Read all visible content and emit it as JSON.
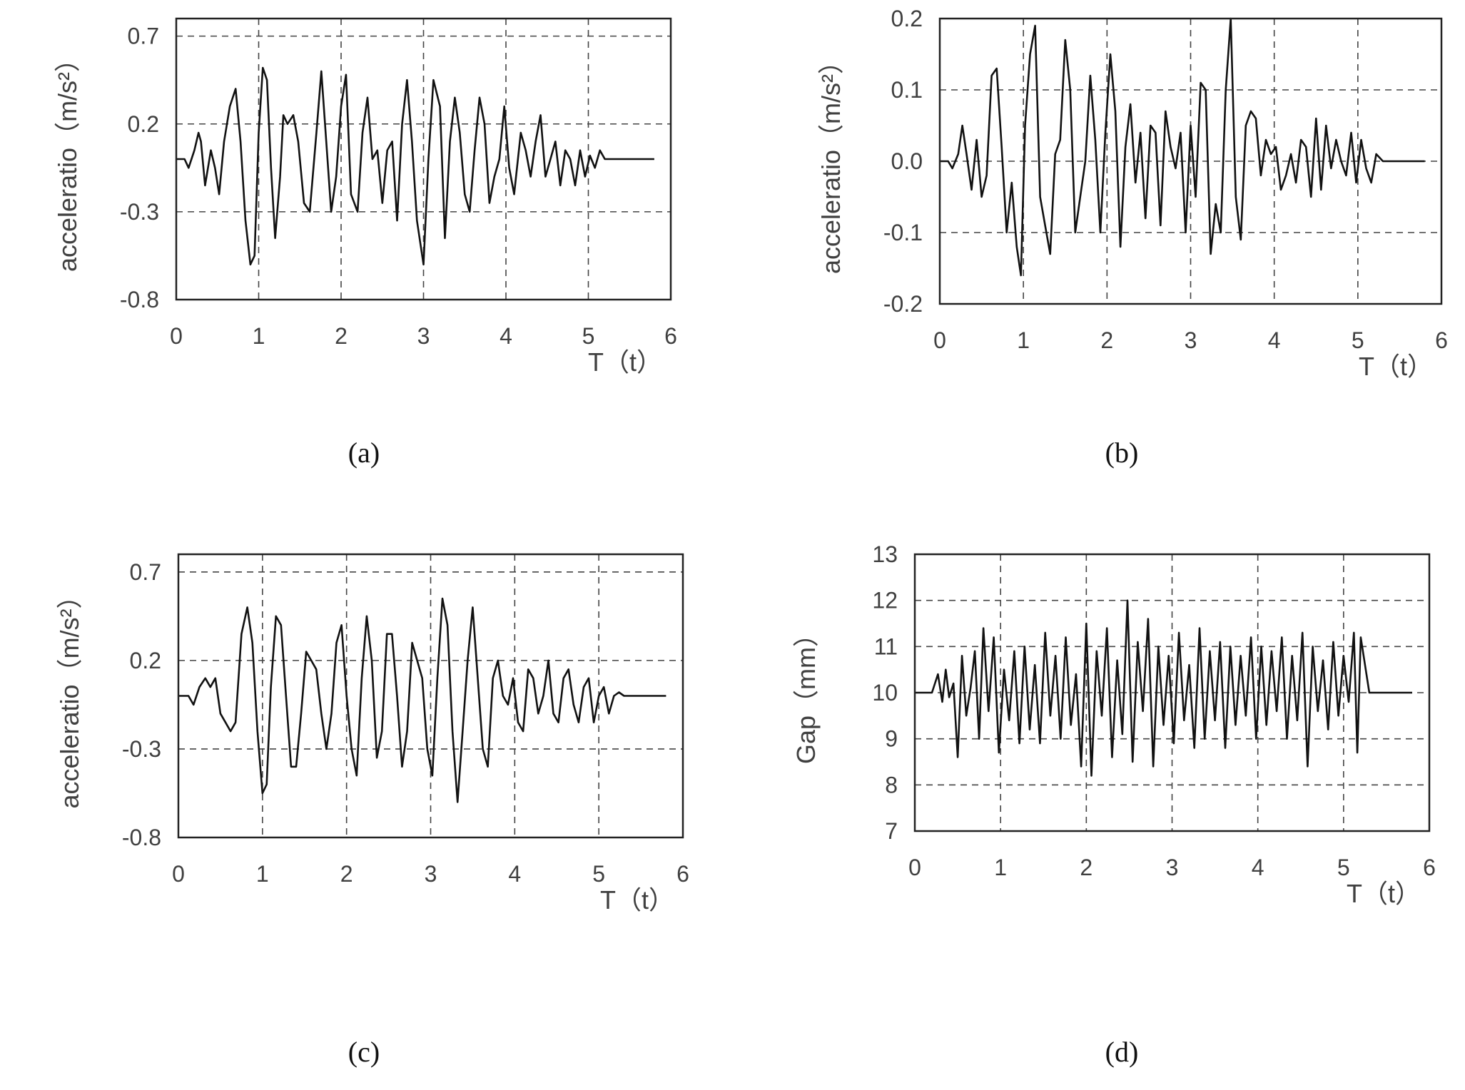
{
  "chart_data": [
    {
      "panel": "(a)",
      "type": "line",
      "xlabel": "T（t）",
      "ylabel": "acceleratio（m/s²）",
      "xlim": [
        0,
        6
      ],
      "ylim": [
        -0.8,
        0.8
      ],
      "xticks": [
        0,
        1,
        2,
        3,
        4,
        5,
        6
      ],
      "yticks": [
        -0.8,
        -0.3,
        0.2,
        0.7
      ],
      "ytick_labels": [
        "-0.8",
        "-0.3",
        "0.2",
        "0.7"
      ],
      "grid": true,
      "series": [
        {
          "x": [
            0.0,
            0.1,
            0.15,
            0.22,
            0.27,
            0.3,
            0.35,
            0.42,
            0.47,
            0.52,
            0.58,
            0.65,
            0.72,
            0.78,
            0.84,
            0.9,
            0.95,
            1.0,
            1.05,
            1.1,
            1.15,
            1.2,
            1.26,
            1.3,
            1.35,
            1.42,
            1.48,
            1.55,
            1.62,
            1.7,
            1.76,
            1.82,
            1.88,
            1.94,
            2.0,
            2.06,
            2.12,
            2.2,
            2.26,
            2.32,
            2.38,
            2.44,
            2.5,
            2.56,
            2.62,
            2.68,
            2.74,
            2.8,
            2.86,
            2.92,
            3.0,
            3.06,
            3.12,
            3.2,
            3.26,
            3.32,
            3.38,
            3.44,
            3.5,
            3.56,
            3.62,
            3.68,
            3.74,
            3.8,
            3.86,
            3.92,
            3.98,
            4.04,
            4.1,
            4.18,
            4.24,
            4.3,
            4.36,
            4.42,
            4.48,
            4.54,
            4.6,
            4.66,
            4.72,
            4.78,
            4.84,
            4.9,
            4.96,
            5.02,
            5.08,
            5.14,
            5.2,
            5.3,
            5.5,
            5.8
          ],
          "y": [
            0.0,
            0.0,
            -0.05,
            0.05,
            0.15,
            0.1,
            -0.15,
            0.05,
            -0.05,
            -0.2,
            0.1,
            0.3,
            0.4,
            0.1,
            -0.35,
            -0.6,
            -0.55,
            0.15,
            0.52,
            0.45,
            -0.05,
            -0.45,
            -0.1,
            0.25,
            0.2,
            0.25,
            0.1,
            -0.25,
            -0.3,
            0.15,
            0.5,
            0.1,
            -0.3,
            -0.1,
            0.3,
            0.48,
            -0.2,
            -0.3,
            0.15,
            0.35,
            0.0,
            0.05,
            -0.25,
            0.05,
            0.1,
            -0.35,
            0.2,
            0.45,
            0.1,
            -0.35,
            -0.6,
            0.0,
            0.45,
            0.3,
            -0.45,
            0.1,
            0.35,
            0.15,
            -0.2,
            -0.3,
            0.05,
            0.35,
            0.2,
            -0.25,
            -0.1,
            0.0,
            0.3,
            -0.05,
            -0.2,
            0.15,
            0.05,
            -0.1,
            0.1,
            0.25,
            -0.1,
            0.0,
            0.1,
            -0.15,
            0.05,
            0.0,
            -0.15,
            0.05,
            -0.1,
            0.02,
            -0.05,
            0.05,
            0.0,
            0.0,
            0.0,
            0.0
          ]
        }
      ]
    },
    {
      "panel": "(b)",
      "type": "line",
      "xlabel": "T（t）",
      "ylabel": "acceleratio（m/s²）",
      "xlim": [
        0,
        6
      ],
      "ylim": [
        -0.2,
        0.2
      ],
      "xticks": [
        0,
        1,
        2,
        3,
        4,
        5,
        6
      ],
      "yticks": [
        -0.2,
        -0.1,
        0.0,
        0.1,
        0.2
      ],
      "ytick_labels": [
        "-0.2",
        "-0.1",
        "0.0",
        "0.1",
        "0.2"
      ],
      "grid": true,
      "series": [
        {
          "x": [
            0.0,
            0.1,
            0.15,
            0.22,
            0.27,
            0.32,
            0.38,
            0.44,
            0.5,
            0.56,
            0.62,
            0.68,
            0.74,
            0.8,
            0.86,
            0.92,
            0.97,
            1.02,
            1.08,
            1.14,
            1.2,
            1.26,
            1.32,
            1.38,
            1.44,
            1.5,
            1.56,
            1.62,
            1.68,
            1.74,
            1.8,
            1.86,
            1.92,
            1.98,
            2.04,
            2.1,
            2.16,
            2.22,
            2.28,
            2.34,
            2.4,
            2.46,
            2.52,
            2.58,
            2.64,
            2.7,
            2.76,
            2.82,
            2.88,
            2.94,
            3.0,
            3.06,
            3.12,
            3.18,
            3.24,
            3.3,
            3.36,
            3.42,
            3.48,
            3.54,
            3.6,
            3.66,
            3.72,
            3.78,
            3.84,
            3.9,
            3.96,
            4.02,
            4.08,
            4.14,
            4.2,
            4.26,
            4.32,
            4.38,
            4.44,
            4.5,
            4.56,
            4.62,
            4.68,
            4.74,
            4.8,
            4.86,
            4.92,
            4.98,
            5.04,
            5.1,
            5.16,
            5.22,
            5.3,
            5.5,
            5.8
          ],
          "y": [
            0.0,
            0.0,
            -0.01,
            0.01,
            0.05,
            0.01,
            -0.04,
            0.03,
            -0.05,
            -0.02,
            0.12,
            0.13,
            0.02,
            -0.1,
            -0.03,
            -0.12,
            -0.16,
            0.05,
            0.15,
            0.19,
            -0.05,
            -0.09,
            -0.13,
            0.01,
            0.03,
            0.17,
            0.1,
            -0.1,
            -0.05,
            0.0,
            0.12,
            0.03,
            -0.1,
            0.04,
            0.15,
            0.07,
            -0.12,
            0.02,
            0.08,
            -0.03,
            0.04,
            -0.08,
            0.05,
            0.04,
            -0.09,
            0.07,
            0.02,
            -0.01,
            0.04,
            -0.1,
            0.05,
            -0.05,
            0.11,
            0.1,
            -0.13,
            -0.06,
            -0.1,
            0.1,
            0.2,
            -0.05,
            -0.11,
            0.05,
            0.07,
            0.06,
            -0.02,
            0.03,
            0.01,
            0.02,
            -0.04,
            -0.02,
            0.01,
            -0.03,
            0.03,
            0.02,
            -0.05,
            0.06,
            -0.04,
            0.05,
            -0.01,
            0.03,
            0.0,
            -0.02,
            0.04,
            -0.03,
            0.03,
            -0.01,
            -0.03,
            0.01,
            0.0,
            0.0,
            0.0
          ]
        }
      ]
    },
    {
      "panel": "(c)",
      "type": "line",
      "xlabel": "T（t）",
      "ylabel": "acceleratio（m/s²）",
      "xlim": [
        0,
        6
      ],
      "ylim": [
        -0.8,
        0.8
      ],
      "xticks": [
        0,
        1,
        2,
        3,
        4,
        5,
        6
      ],
      "yticks": [
        -0.8,
        -0.3,
        0.2,
        0.7
      ],
      "ytick_labels": [
        "-0.8",
        "-0.3",
        "0.2",
        "0.7"
      ],
      "grid": true,
      "series": [
        {
          "x": [
            0.0,
            0.12,
            0.18,
            0.25,
            0.32,
            0.38,
            0.44,
            0.5,
            0.56,
            0.62,
            0.68,
            0.75,
            0.82,
            0.88,
            0.94,
            1.0,
            1.05,
            1.1,
            1.16,
            1.22,
            1.28,
            1.34,
            1.4,
            1.46,
            1.52,
            1.58,
            1.64,
            1.7,
            1.76,
            1.82,
            1.88,
            1.94,
            2.0,
            2.06,
            2.12,
            2.18,
            2.24,
            2.3,
            2.36,
            2.42,
            2.48,
            2.54,
            2.6,
            2.66,
            2.72,
            2.78,
            2.84,
            2.9,
            2.96,
            3.02,
            3.08,
            3.14,
            3.2,
            3.26,
            3.32,
            3.38,
            3.44,
            3.5,
            3.56,
            3.62,
            3.68,
            3.74,
            3.8,
            3.86,
            3.92,
            3.98,
            4.04,
            4.1,
            4.16,
            4.22,
            4.28,
            4.34,
            4.4,
            4.46,
            4.52,
            4.58,
            4.64,
            4.7,
            4.76,
            4.82,
            4.88,
            4.94,
            5.0,
            5.06,
            5.12,
            5.18,
            5.24,
            5.3,
            5.4,
            5.6,
            5.8
          ],
          "y": [
            0.0,
            0.0,
            -0.05,
            0.05,
            0.1,
            0.05,
            0.1,
            -0.1,
            -0.15,
            -0.2,
            -0.15,
            0.35,
            0.5,
            0.3,
            -0.2,
            -0.55,
            -0.5,
            0.05,
            0.45,
            0.4,
            0.0,
            -0.4,
            -0.4,
            -0.1,
            0.25,
            0.2,
            0.15,
            -0.1,
            -0.3,
            -0.1,
            0.3,
            0.4,
            0.0,
            -0.3,
            -0.45,
            0.1,
            0.45,
            0.2,
            -0.35,
            -0.2,
            0.35,
            0.35,
            0.0,
            -0.4,
            -0.2,
            0.3,
            0.2,
            0.1,
            -0.3,
            -0.45,
            0.1,
            0.55,
            0.4,
            -0.2,
            -0.6,
            -0.2,
            0.2,
            0.5,
            0.1,
            -0.3,
            -0.4,
            0.1,
            0.2,
            0.0,
            -0.05,
            0.1,
            -0.15,
            -0.2,
            0.15,
            0.1,
            -0.1,
            0.0,
            0.2,
            -0.1,
            -0.15,
            0.1,
            0.15,
            -0.05,
            -0.15,
            0.05,
            0.1,
            -0.15,
            0.0,
            0.05,
            -0.1,
            0.0,
            0.02,
            0.0,
            0.0,
            0.0,
            0.0
          ]
        }
      ]
    },
    {
      "panel": "(d)",
      "type": "line",
      "xlabel": "T（t）",
      "ylabel": "Gap（mm）",
      "xlim": [
        0,
        6
      ],
      "ylim": [
        7,
        13
      ],
      "xticks": [
        0,
        1,
        2,
        3,
        4,
        5,
        6
      ],
      "yticks": [
        7,
        8,
        9,
        10,
        11,
        12,
        13
      ],
      "ytick_labels": [
        "7",
        "8",
        "9",
        "10",
        "11",
        "12",
        "13"
      ],
      "grid": true,
      "series": [
        {
          "x": [
            0.0,
            0.1,
            0.2,
            0.27,
            0.32,
            0.36,
            0.4,
            0.45,
            0.5,
            0.55,
            0.6,
            0.65,
            0.7,
            0.75,
            0.8,
            0.86,
            0.92,
            0.98,
            1.04,
            1.1,
            1.16,
            1.22,
            1.28,
            1.34,
            1.4,
            1.46,
            1.52,
            1.58,
            1.64,
            1.7,
            1.76,
            1.82,
            1.88,
            1.94,
            2.0,
            2.06,
            2.12,
            2.18,
            2.24,
            2.3,
            2.36,
            2.42,
            2.48,
            2.54,
            2.6,
            2.66,
            2.72,
            2.78,
            2.84,
            2.9,
            2.96,
            3.02,
            3.08,
            3.14,
            3.2,
            3.26,
            3.32,
            3.38,
            3.44,
            3.5,
            3.56,
            3.62,
            3.68,
            3.74,
            3.8,
            3.86,
            3.92,
            3.98,
            4.04,
            4.1,
            4.16,
            4.22,
            4.28,
            4.34,
            4.4,
            4.46,
            4.52,
            4.58,
            4.64,
            4.7,
            4.76,
            4.82,
            4.88,
            4.94,
            5.0,
            5.06,
            5.12,
            5.16,
            5.2,
            5.3,
            5.5,
            5.8
          ],
          "y": [
            10.0,
            10.0,
            10.0,
            10.4,
            9.8,
            10.5,
            9.9,
            10.2,
            8.6,
            10.8,
            9.5,
            10.1,
            10.9,
            9.0,
            11.4,
            9.6,
            11.2,
            8.7,
            10.5,
            9.4,
            10.9,
            8.9,
            11.0,
            9.2,
            10.6,
            8.9,
            11.3,
            9.5,
            10.8,
            9.0,
            11.2,
            9.3,
            10.4,
            8.4,
            11.5,
            8.2,
            10.9,
            9.5,
            11.4,
            8.6,
            10.7,
            9.1,
            12.0,
            8.5,
            11.1,
            9.6,
            11.6,
            8.4,
            11.0,
            9.3,
            10.8,
            8.9,
            11.3,
            9.4,
            10.6,
            8.8,
            11.4,
            9.0,
            10.9,
            9.4,
            11.1,
            8.8,
            11.0,
            9.3,
            10.8,
            9.5,
            11.2,
            9.0,
            11.0,
            9.3,
            10.9,
            9.6,
            11.2,
            9.0,
            10.8,
            9.4,
            11.3,
            8.4,
            11.0,
            9.6,
            10.7,
            9.2,
            11.1,
            9.5,
            10.8,
            9.8,
            11.3,
            8.7,
            11.2,
            10.0,
            10.0,
            10.0
          ]
        }
      ]
    }
  ],
  "figure": {
    "panels": [
      {
        "caption": "(a)",
        "xlabel": "T（t）",
        "ylabel": "acceleratio（m/s²）",
        "yticks": [
          "-0.8",
          "-0.3",
          "0.2",
          "0.7"
        ],
        "xticks": [
          "0",
          "1",
          "2",
          "3",
          "4",
          "5",
          "6"
        ]
      },
      {
        "caption": "(b)",
        "xlabel": "T（t）",
        "ylabel": "acceleratio（m/s²）",
        "yticks": [
          "-0.2",
          "-0.1",
          "0.0",
          "0.1",
          "0.2"
        ],
        "xticks": [
          "0",
          "1",
          "2",
          "3",
          "4",
          "5",
          "6"
        ]
      },
      {
        "caption": "(c)",
        "xlabel": "T（t）",
        "ylabel": "acceleratio（m/s²）",
        "yticks": [
          "-0.8",
          "-0.3",
          "0.2",
          "0.7"
        ],
        "xticks": [
          "0",
          "1",
          "2",
          "3",
          "4",
          "5",
          "6"
        ]
      },
      {
        "caption": "(d)",
        "xlabel": "T（t）",
        "ylabel": "Gap（mm）",
        "yticks": [
          "7",
          "8",
          "9",
          "10",
          "11",
          "12",
          "13"
        ],
        "xticks": [
          "0",
          "1",
          "2",
          "3",
          "4",
          "5",
          "6"
        ]
      }
    ]
  }
}
